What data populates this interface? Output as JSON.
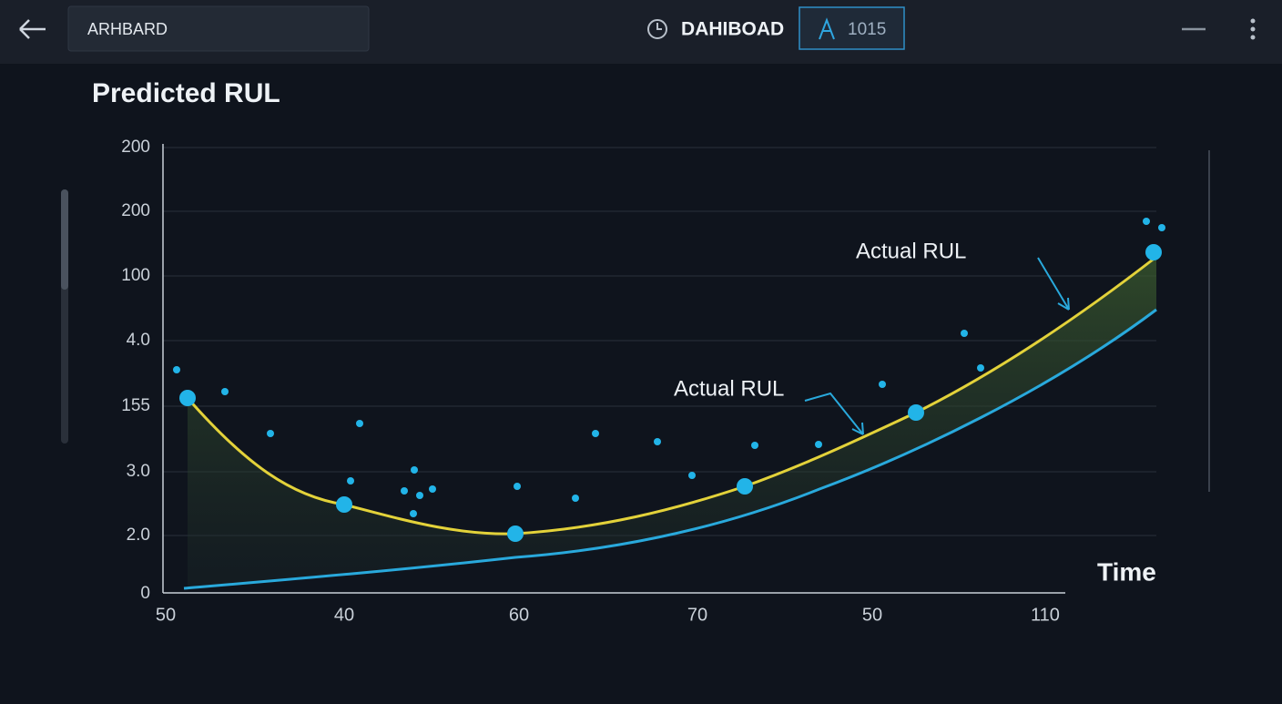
{
  "header": {
    "search": "ARHBARD",
    "title": "DAHIBOAD",
    "badge": "1015"
  },
  "chart": {
    "title": "Predicted RUL",
    "y_labels": [
      "200",
      "200",
      "100",
      "4.0",
      "155",
      "3.0",
      "2.0",
      "0"
    ],
    "x_labels": [
      "50",
      "40",
      "60",
      "70",
      "50",
      "110"
    ],
    "x_axis_label": "Time",
    "annotations": [
      "Actual RUL",
      "Actual RUL"
    ]
  }
}
